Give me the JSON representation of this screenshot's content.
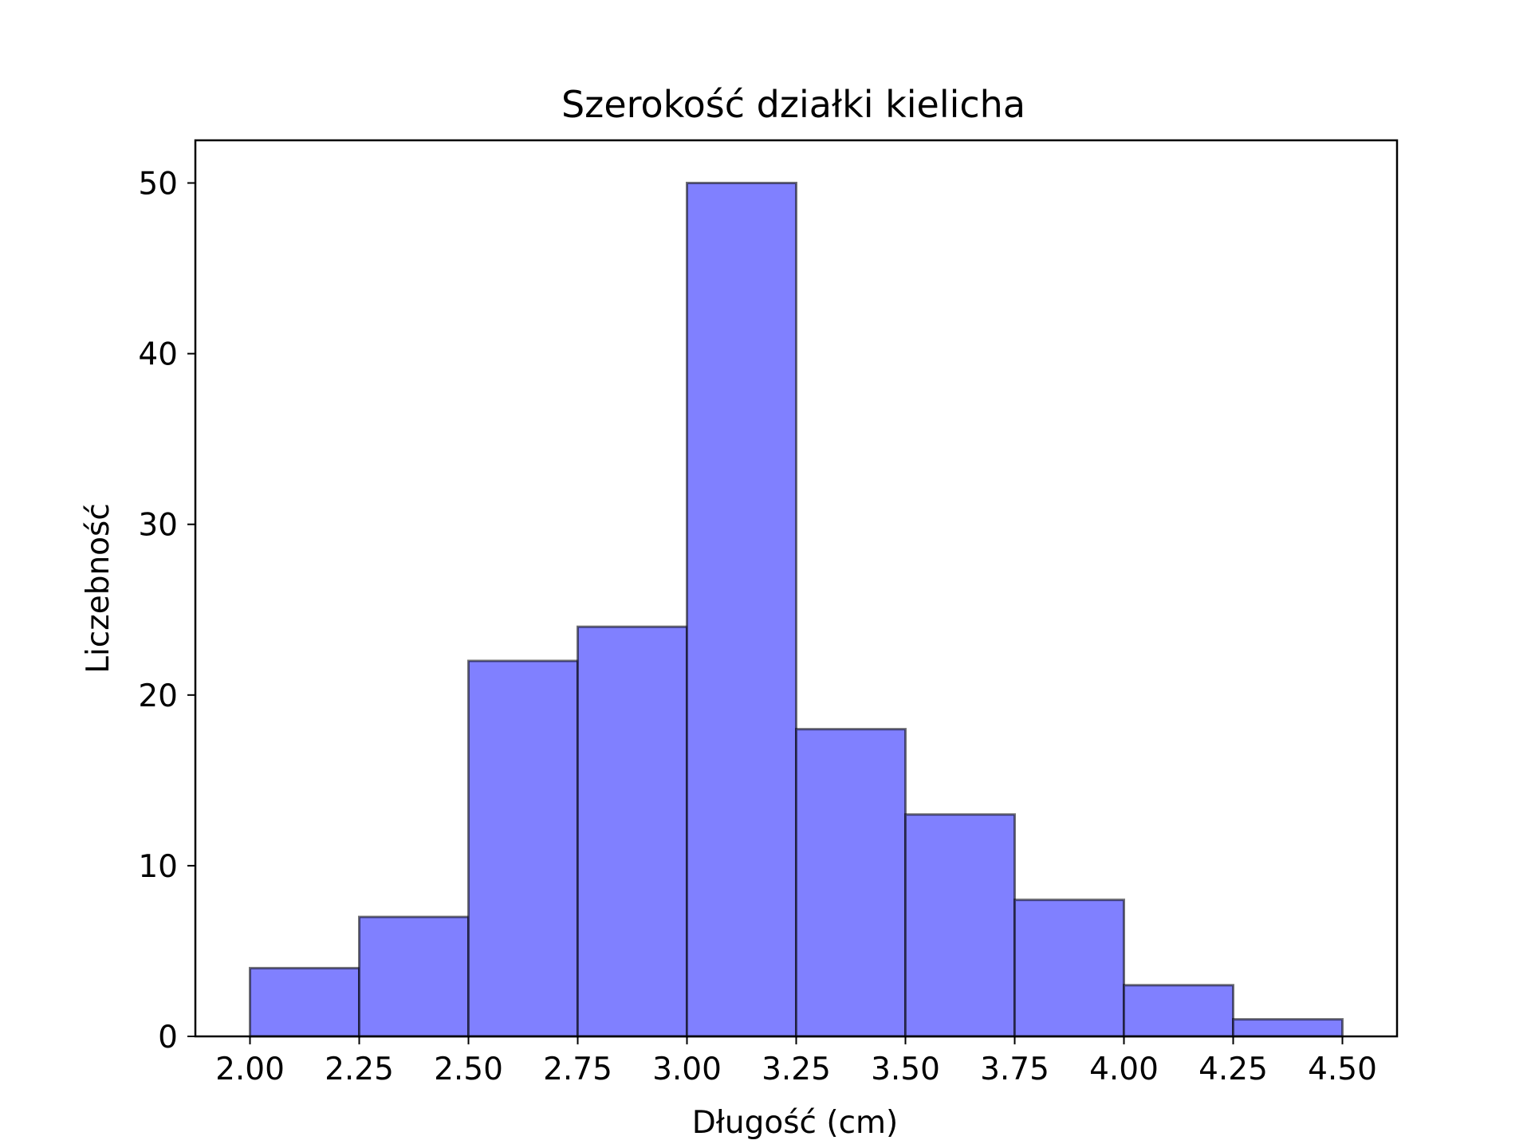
{
  "chart_data": {
    "type": "bar",
    "title": "Szerokość działki kielicha",
    "xlabel": "Długość (cm)",
    "ylabel": "Liczebność",
    "bin_edges": [
      2.0,
      2.25,
      2.5,
      2.75,
      3.0,
      3.25,
      3.5,
      3.75,
      4.0,
      4.25,
      4.5
    ],
    "values": [
      4,
      7,
      22,
      24,
      50,
      18,
      13,
      8,
      3,
      1
    ],
    "xlim": [
      1.875,
      4.625
    ],
    "ylim": [
      0,
      52.5
    ],
    "xticks": [
      "2.00",
      "2.25",
      "2.50",
      "2.75",
      "3.00",
      "3.25",
      "3.50",
      "3.75",
      "4.00",
      "4.25",
      "4.50"
    ],
    "yticks": [
      "0",
      "10",
      "20",
      "30",
      "40",
      "50"
    ],
    "bar_color": "#8080ff",
    "edge_color": "#000000",
    "grid": false,
    "legend": false
  }
}
